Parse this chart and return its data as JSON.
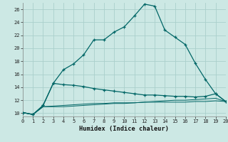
{
  "background_color": "#cce8e4",
  "grid_color": "#aacfcb",
  "line_color": "#006666",
  "xlabel": "Humidex (Indice chaleur)",
  "xlim": [
    0,
    20
  ],
  "ylim": [
    9.5,
    27
  ],
  "xticks": [
    0,
    1,
    2,
    3,
    4,
    5,
    6,
    7,
    8,
    9,
    10,
    11,
    12,
    13,
    14,
    15,
    16,
    17,
    18,
    19,
    20
  ],
  "yticks": [
    10,
    12,
    14,
    16,
    18,
    20,
    22,
    24,
    26
  ],
  "series1_x": [
    0,
    1,
    2,
    3,
    4,
    5,
    6,
    7,
    8,
    9,
    10,
    11,
    12,
    13,
    14,
    15,
    16,
    17,
    18,
    19,
    20
  ],
  "series1_y": [
    10.1,
    9.8,
    11.2,
    14.6,
    16.7,
    17.6,
    19.0,
    21.3,
    21.3,
    22.5,
    23.3,
    25.0,
    26.8,
    26.5,
    22.8,
    21.7,
    20.6,
    17.7,
    15.2,
    13.0,
    11.8
  ],
  "series2_x": [
    0,
    1,
    2,
    3,
    4,
    5,
    6,
    7,
    8,
    9,
    10,
    11,
    12,
    13,
    14,
    15,
    16,
    17,
    18,
    19,
    20
  ],
  "series2_y": [
    10.1,
    9.8,
    11.2,
    14.6,
    14.4,
    14.3,
    14.1,
    13.8,
    13.6,
    13.4,
    13.2,
    13.0,
    12.8,
    12.8,
    12.7,
    12.6,
    12.6,
    12.5,
    12.6,
    13.0,
    11.8
  ],
  "series3_x": [
    0,
    1,
    2,
    3,
    4,
    5,
    6,
    7,
    8,
    9,
    10,
    11,
    12,
    13,
    14,
    15,
    16,
    17,
    18,
    19,
    20
  ],
  "series3_y": [
    10.1,
    9.8,
    11.0,
    11.1,
    11.2,
    11.3,
    11.4,
    11.5,
    11.5,
    11.6,
    11.6,
    11.6,
    11.7,
    11.7,
    11.7,
    11.7,
    11.7,
    11.8,
    11.8,
    11.9,
    11.8
  ],
  "series4_x": [
    0,
    1,
    2,
    3,
    4,
    5,
    6,
    7,
    8,
    9,
    10,
    11,
    12,
    13,
    14,
    15,
    16,
    17,
    18,
    19,
    20
  ],
  "series4_y": [
    10.1,
    9.8,
    11.0,
    11.0,
    11.0,
    11.1,
    11.2,
    11.3,
    11.4,
    11.5,
    11.5,
    11.6,
    11.7,
    11.8,
    11.9,
    12.0,
    12.0,
    12.1,
    12.2,
    12.3,
    11.8
  ]
}
